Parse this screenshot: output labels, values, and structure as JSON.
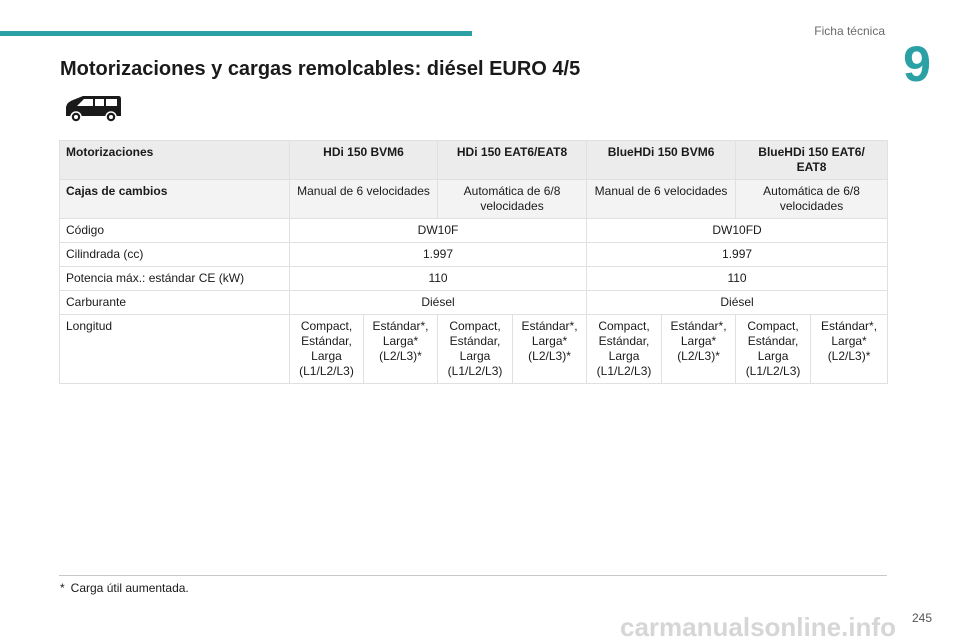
{
  "header": {
    "section": "Ficha técnica",
    "chapter_number": "9"
  },
  "page_title": "Motorizaciones y cargas remolcables: diésel EURO 4/5",
  "icon": "van-icon",
  "table": {
    "header": {
      "label": "Motorizaciones",
      "engines": [
        "HDi 150 BVM6",
        "HDi 150 EAT6/EAT8",
        "BlueHDi 150 BVM6",
        "BlueHDi 150 EAT6/ EAT8"
      ]
    },
    "gearbox": {
      "label": "Cajas de cambios",
      "values": [
        "Manual de 6 velocidades",
        "Automática de 6/8 velocidades",
        "Manual de 6 velocidades",
        "Automática de 6/8 velocidades"
      ]
    },
    "code": {
      "label": "Código",
      "values": [
        "DW10F",
        "DW10FD"
      ]
    },
    "displacement": {
      "label": "Cilindrada (cc)",
      "values": [
        "1.997",
        "1.997"
      ]
    },
    "power": {
      "label": "Potencia máx.: estándar CE (kW)",
      "values": [
        "110",
        "110"
      ]
    },
    "fuel": {
      "label": "Carburante",
      "values": [
        "Diésel",
        "Diésel"
      ]
    },
    "length": {
      "label": "Longitud",
      "values": [
        "Compact, Estándar, Larga (L1/L2/L3)",
        "Estándar*, Larga* (L2/L3)*",
        "Compact, Estándar, Larga (L1/L2/L3)",
        "Estándar*, Larga* (L2/L3)*",
        "Compact, Estándar, Larga (L1/L2/L3)",
        "Estándar*, Larga* (L2/L3)*",
        "Compact, Estándar, Larga (L1/L2/L3)",
        "Estándar*, Larga* (L2/L3)*"
      ]
    }
  },
  "footnote": {
    "marker": "*",
    "text": "Carga útil aumentada."
  },
  "page_number": "245",
  "watermark": "carmanualsonline.info",
  "colors": {
    "accent": "#2ba0a5",
    "header_bg": "#ececec"
  }
}
